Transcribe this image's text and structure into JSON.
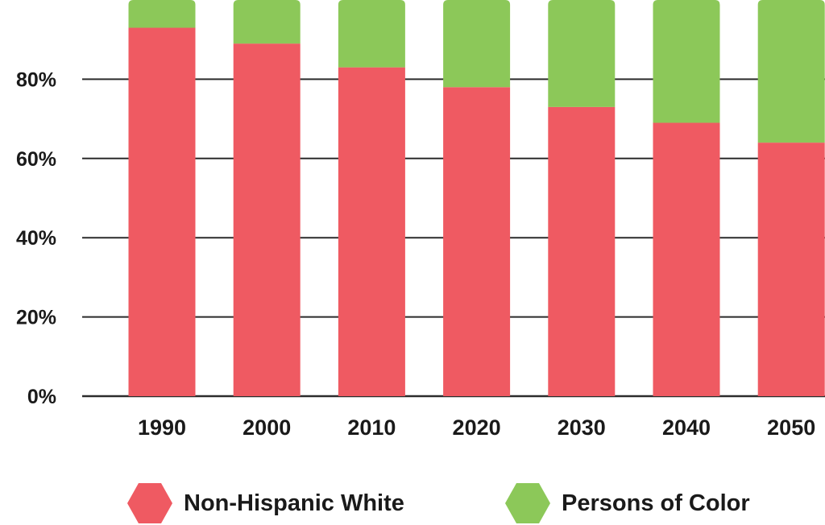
{
  "chart_data": {
    "type": "bar",
    "stacked": true,
    "categories": [
      "1990",
      "2000",
      "2010",
      "2020",
      "2030",
      "2040",
      "2050"
    ],
    "series": [
      {
        "name": "Non-Hispanic White",
        "color": "#ef5a62",
        "values": [
          93,
          89,
          83,
          78,
          73,
          69,
          64
        ]
      },
      {
        "name": "Persons of Color",
        "color": "#8cc859",
        "values": [
          7,
          11,
          17,
          22,
          27,
          31,
          36
        ]
      }
    ],
    "y_ticks": [
      "0%",
      "20%",
      "40%",
      "60%",
      "80%"
    ],
    "ylim": [
      0,
      100
    ],
    "title": "",
    "xlabel": "",
    "ylabel": "",
    "grid": true,
    "legend_position": "bottom"
  },
  "legend": {
    "items": [
      {
        "label": "Non-Hispanic White",
        "color": "#ef5a62",
        "icon": "hexagon-icon"
      },
      {
        "label": "Persons of Color",
        "color": "#8cc859",
        "icon": "hexagon-icon"
      }
    ]
  }
}
